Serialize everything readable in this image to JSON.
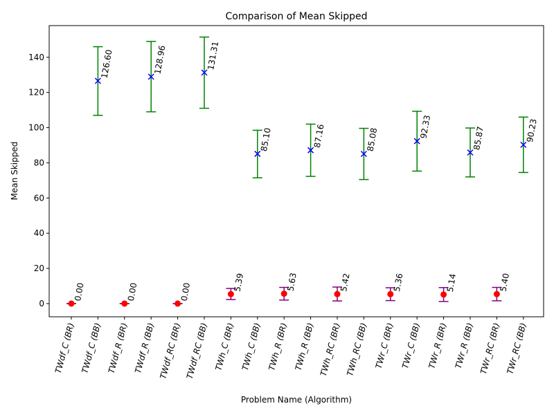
{
  "chart_data": {
    "type": "scatter",
    "title": "Comparison of Mean Skipped",
    "xlabel": "Problem Name (Algorithm)",
    "ylabel": "Mean Skipped",
    "ylim": [
      -7.5,
      158
    ],
    "yticks": [
      0,
      20,
      40,
      60,
      80,
      100,
      120,
      140
    ],
    "grid": false,
    "categories": [
      "TWdf_C (BR)",
      "TWdf_C (BB)",
      "TWdf_R (BR)",
      "TWdf_R (BB)",
      "TWdf_RC (BR)",
      "TWdf_RC (BB)",
      "TWh_C (BR)",
      "TWh_C (BB)",
      "TWh_R (BR)",
      "TWh_R (BB)",
      "TWh_RC (BR)",
      "TWh_RC (BB)",
      "TWr_C (BR)",
      "TWr_C (BB)",
      "TWr_R (BR)",
      "TWr_R (BB)",
      "TWr_RC (BR)",
      "TWr_RC (BB)"
    ],
    "points": [
      {
        "value": 0.0,
        "low": 0.0,
        "high": 0.0,
        "algo": "BR",
        "label": "0.00"
      },
      {
        "value": 126.6,
        "low": 107.0,
        "high": 146.0,
        "algo": "BB",
        "label": "126.60"
      },
      {
        "value": 0.0,
        "low": 0.0,
        "high": 0.0,
        "algo": "BR",
        "label": "0.00"
      },
      {
        "value": 128.96,
        "low": 109.0,
        "high": 149.0,
        "algo": "BB",
        "label": "128.96"
      },
      {
        "value": 0.0,
        "low": 0.0,
        "high": 0.0,
        "algo": "BR",
        "label": "0.00"
      },
      {
        "value": 131.31,
        "low": 111.0,
        "high": 151.5,
        "algo": "BB",
        "label": "131.31"
      },
      {
        "value": 5.39,
        "low": 2.3,
        "high": 8.6,
        "algo": "BR",
        "label": "5.39"
      },
      {
        "value": 85.1,
        "low": 71.5,
        "high": 98.5,
        "algo": "BB",
        "label": "85.10"
      },
      {
        "value": 5.63,
        "low": 2.0,
        "high": 9.2,
        "algo": "BR",
        "label": "5.63"
      },
      {
        "value": 87.16,
        "low": 72.3,
        "high": 102.0,
        "algo": "BB",
        "label": "87.16"
      },
      {
        "value": 5.42,
        "low": 1.5,
        "high": 9.4,
        "algo": "BR",
        "label": "5.42"
      },
      {
        "value": 85.08,
        "low": 70.5,
        "high": 99.6,
        "algo": "BB",
        "label": "85.08"
      },
      {
        "value": 5.36,
        "low": 1.7,
        "high": 9.0,
        "algo": "BR",
        "label": "5.36"
      },
      {
        "value": 92.33,
        "low": 75.3,
        "high": 109.3,
        "algo": "BB",
        "label": "92.33"
      },
      {
        "value": 5.14,
        "low": 1.2,
        "high": 9.1,
        "algo": "BR",
        "label": "5.14"
      },
      {
        "value": 85.87,
        "low": 72.0,
        "high": 99.8,
        "algo": "BB",
        "label": "85.87"
      },
      {
        "value": 5.4,
        "low": 1.6,
        "high": 9.2,
        "algo": "BR",
        "label": "5.40"
      },
      {
        "value": 90.23,
        "low": 74.5,
        "high": 106.0,
        "algo": "BB",
        "label": "90.23"
      }
    ],
    "colors": {
      "BR_marker": "#ff0000",
      "BR_errorbar": "#800080",
      "BB_marker": "#0000ff",
      "BB_errorbar": "#008000"
    }
  }
}
